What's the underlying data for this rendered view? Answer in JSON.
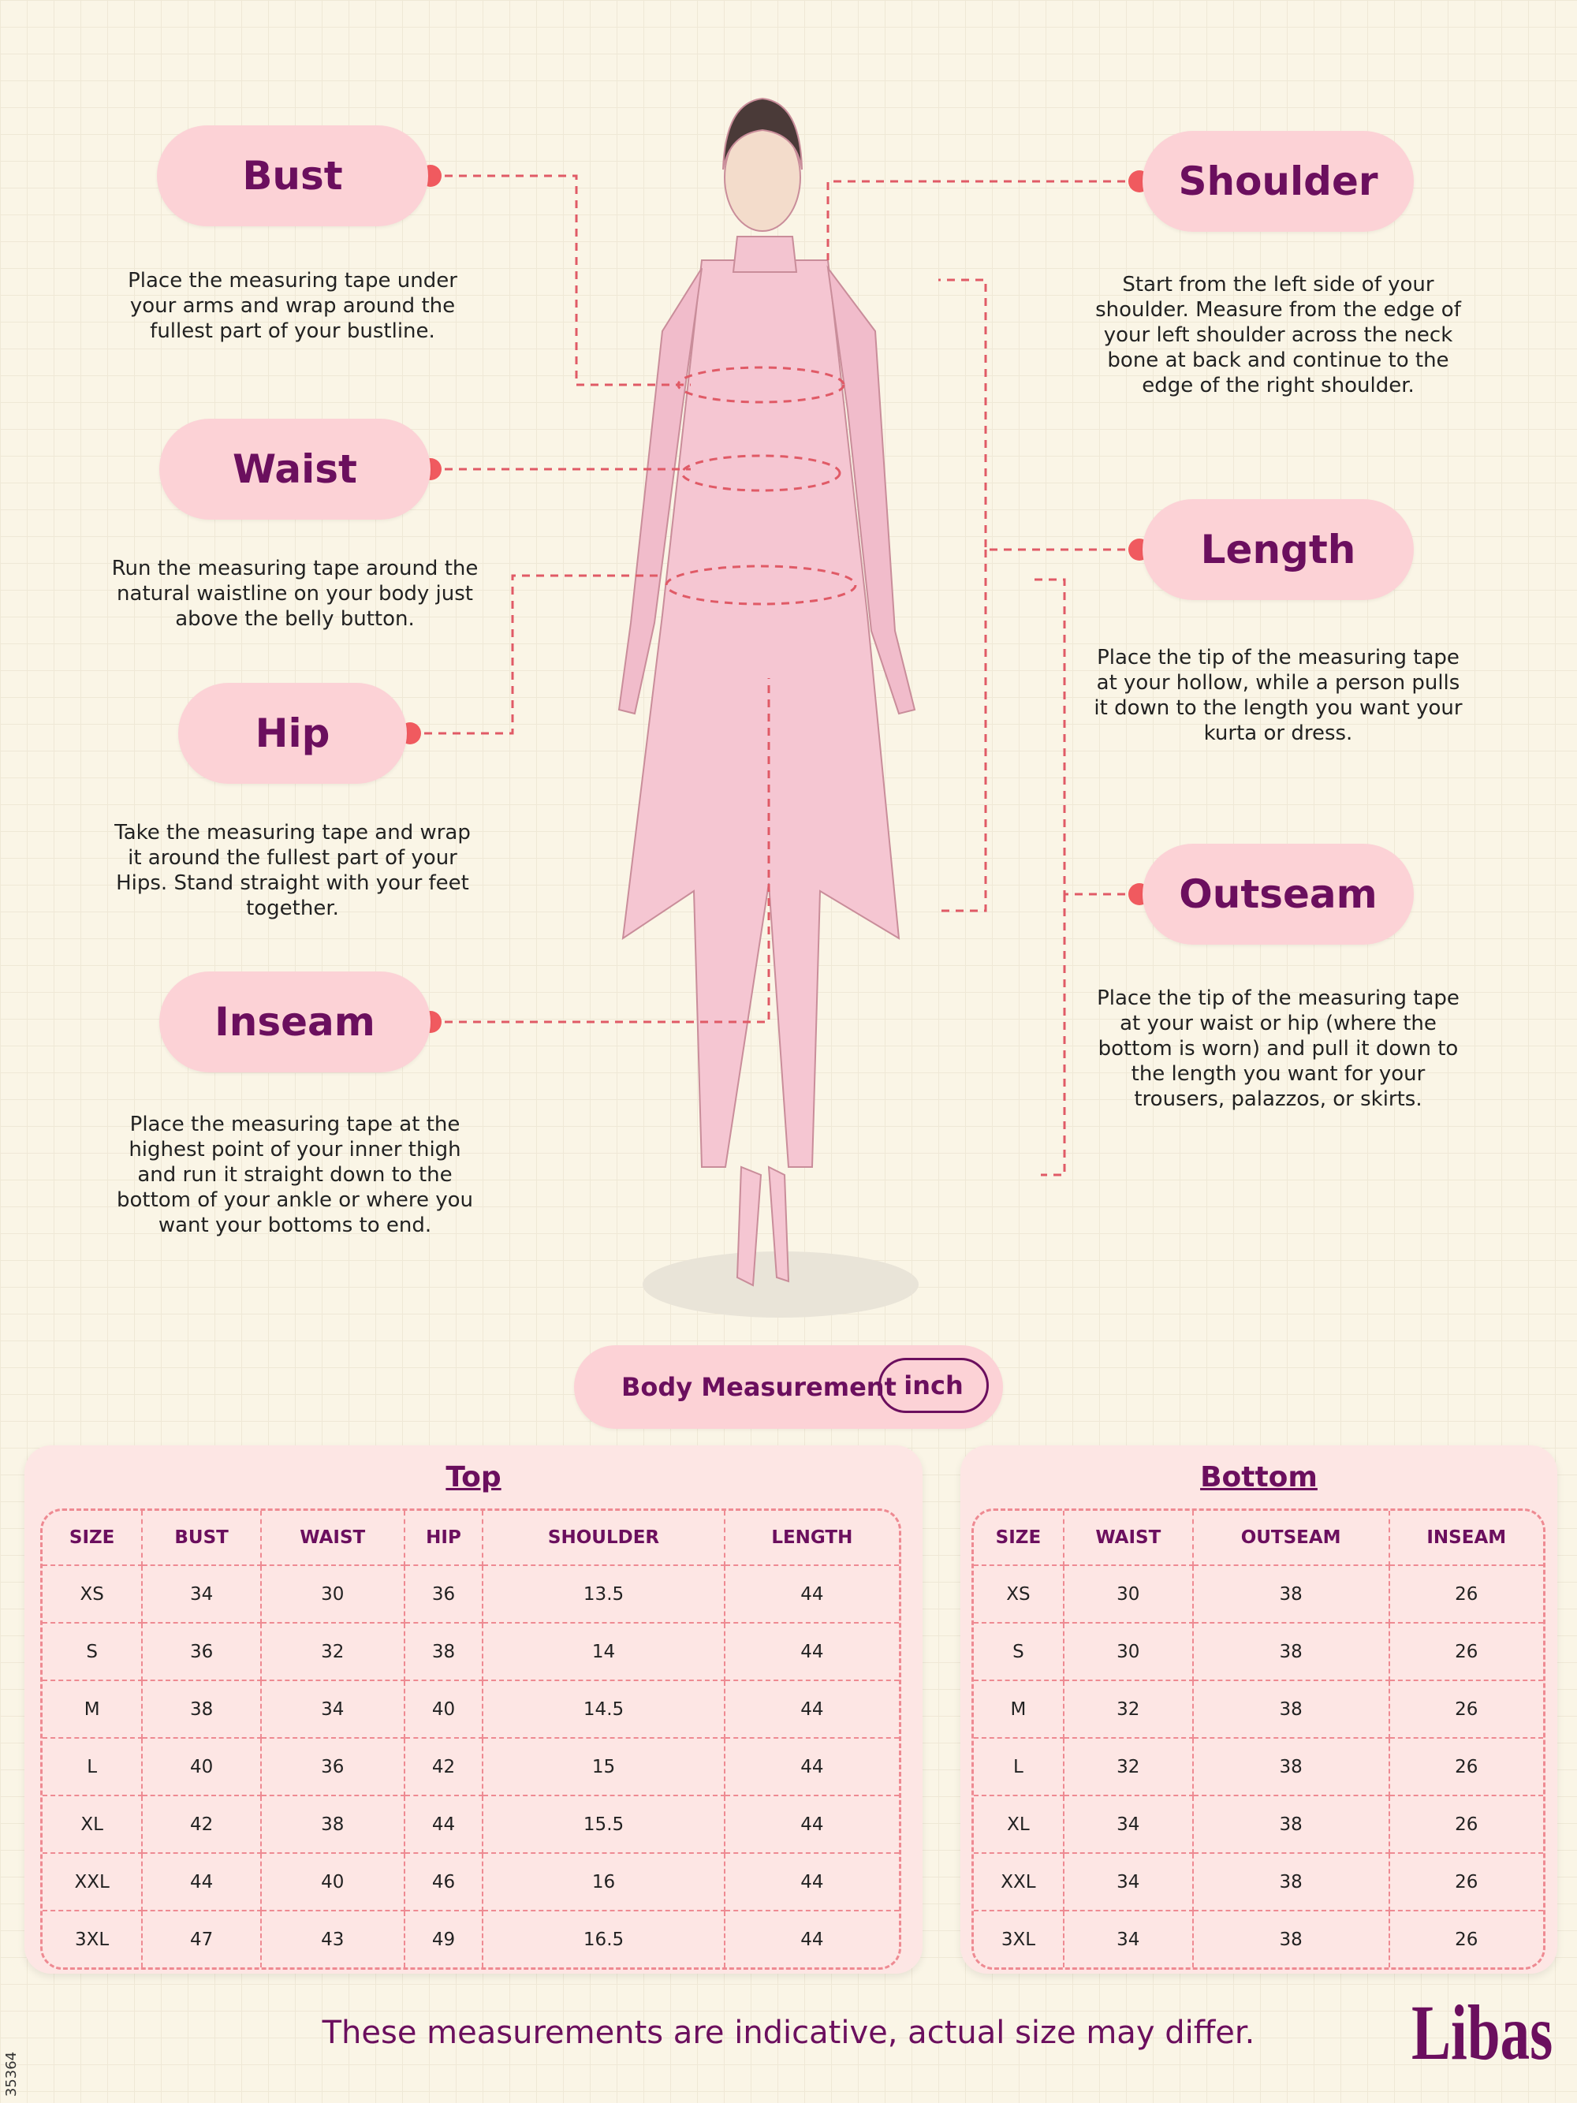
{
  "measures": [
    {
      "title": "Bust",
      "text": "Place the measuring tape under your arms and wrap around the fullest part of your bustline."
    },
    {
      "title": "Waist",
      "text": "Run the measuring tape around the natural waistline on your body just above the belly button."
    },
    {
      "title": "Hip",
      "text": "Take the measuring tape and wrap it around the fullest part of your Hips. Stand straight with your feet together."
    },
    {
      "title": "Inseam",
      "text": "Place the measuring tape at the highest point of your inner thigh and run it straight down to the bottom of your ankle or where you want your bottoms to end."
    },
    {
      "title": "Shoulder",
      "text": "Start from the left side of your shoulder. Measure from the edge of your left shoulder across the neck bone at back and continue to the edge of the right shoulder."
    },
    {
      "title": "Length",
      "text": "Place the tip of the measuring tape at your hollow, while a person pulls it down to the length you want your kurta or dress."
    },
    {
      "title": "Outseam",
      "text": "Place the tip of the measuring tape at your waist or hip (where the bottom is worn) and pull it down to the length you want for your trousers, palazzos, or skirts."
    }
  ],
  "unit_toggle": {
    "label": "Body Measurement",
    "unit": "inch"
  },
  "tables": [
    {
      "title": "Top",
      "headers": [
        "SIZE",
        "BUST",
        "WAIST",
        "HIP",
        "SHOULDER",
        "LENGTH"
      ],
      "rows": [
        [
          "XS",
          "34",
          "30",
          "36",
          "13.5",
          "44"
        ],
        [
          "S",
          "36",
          "32",
          "38",
          "14",
          "44"
        ],
        [
          "M",
          "38",
          "34",
          "40",
          "14.5",
          "44"
        ],
        [
          "L",
          "40",
          "36",
          "42",
          "15",
          "44"
        ],
        [
          "XL",
          "42",
          "38",
          "44",
          "15.5",
          "44"
        ],
        [
          "XXL",
          "44",
          "40",
          "46",
          "16",
          "44"
        ],
        [
          "3XL",
          "47",
          "43",
          "49",
          "16.5",
          "44"
        ]
      ]
    },
    {
      "title": "Bottom",
      "headers": [
        "SIZE",
        "WAIST",
        "OUTSEAM",
        "INSEAM"
      ],
      "rows": [
        [
          "XS",
          "30",
          "38",
          "26"
        ],
        [
          "S",
          "30",
          "38",
          "26"
        ],
        [
          "M",
          "32",
          "38",
          "26"
        ],
        [
          "L",
          "32",
          "38",
          "26"
        ],
        [
          "XL",
          "34",
          "38",
          "26"
        ],
        [
          "XXL",
          "34",
          "38",
          "26"
        ],
        [
          "3XL",
          "34",
          "38",
          "26"
        ]
      ]
    }
  ],
  "footer": {
    "note": "These measurements are indicative, actual size may differ.",
    "brand": "Libas",
    "code": "35364"
  }
}
